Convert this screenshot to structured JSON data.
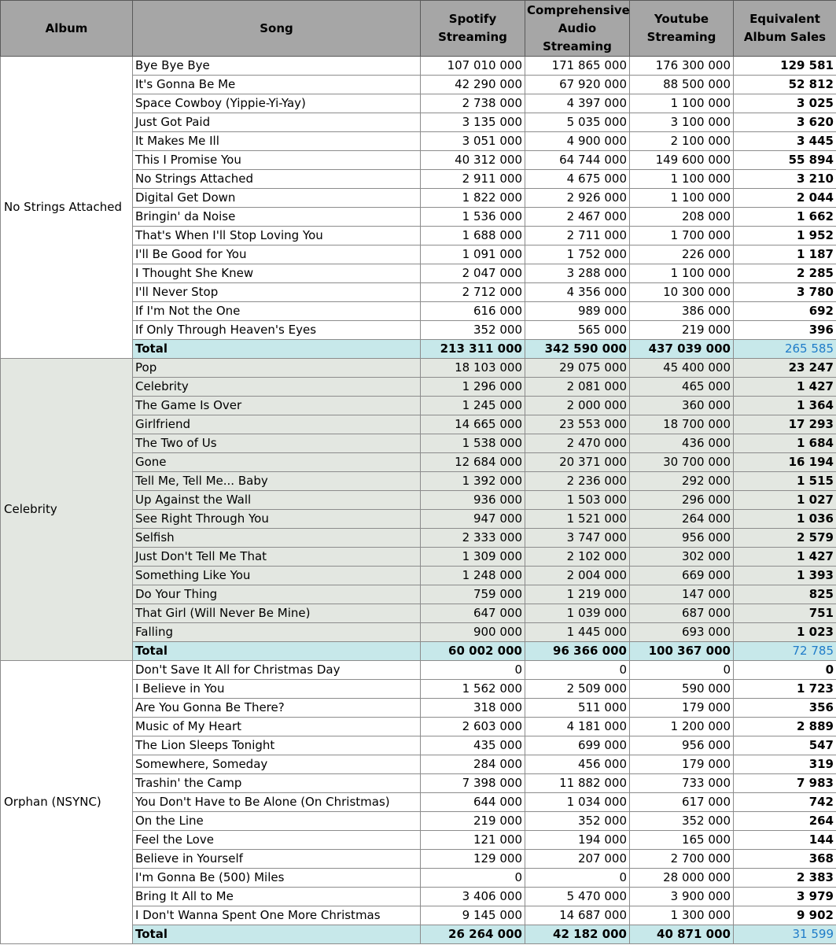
{
  "headers": {
    "album": "Album",
    "song": "Song",
    "spotify": "Spotify Streaming",
    "comprehensive": "Comprehensive Audio Streaming",
    "youtube": "Youtube Streaming",
    "eas": "Equivalent Album Sales"
  },
  "albums": [
    {
      "name": "No Strings Attached",
      "songs": [
        [
          "Bye Bye Bye",
          "107 010 000",
          "171 865 000",
          "176 300 000",
          "129 581"
        ],
        [
          "It's Gonna Be Me",
          "42 290 000",
          "67 920 000",
          "88 500 000",
          "52 812"
        ],
        [
          "Space Cowboy (Yippie-Yi-Yay)",
          "2 738 000",
          "4 397 000",
          "1 100 000",
          "3 025"
        ],
        [
          "Just Got Paid",
          "3 135 000",
          "5 035 000",
          "3 100 000",
          "3 620"
        ],
        [
          "It Makes Me Ill",
          "3 051 000",
          "4 900 000",
          "2 100 000",
          "3 445"
        ],
        [
          "This I Promise You",
          "40 312 000",
          "64 744 000",
          "149 600 000",
          "55 894"
        ],
        [
          "No Strings Attached",
          "2 911 000",
          "4 675 000",
          "1 100 000",
          "3 210"
        ],
        [
          "Digital Get Down",
          "1 822 000",
          "2 926 000",
          "1 100 000",
          "2 044"
        ],
        [
          "Bringin' da Noise",
          "1 536 000",
          "2 467 000",
          "208 000",
          "1 662"
        ],
        [
          "That's When I'll Stop Loving You",
          "1 688 000",
          "2 711 000",
          "1 700 000",
          "1 952"
        ],
        [
          "I'll Be Good for You",
          "1 091 000",
          "1 752 000",
          "226 000",
          "1 187"
        ],
        [
          "I Thought She Knew",
          "2 047 000",
          "3 288 000",
          "1 100 000",
          "2 285"
        ],
        [
          "I'll Never Stop",
          "2 712 000",
          "4 356 000",
          "10 300 000",
          "3 780"
        ],
        [
          "If I'm Not the One",
          "616 000",
          "989 000",
          "386 000",
          "692"
        ],
        [
          "If Only Through Heaven's Eyes",
          "352 000",
          "565 000",
          "219 000",
          "396"
        ]
      ],
      "total": [
        "Total",
        "213 311 000",
        "342 590 000",
        "437 039 000",
        "265 585"
      ]
    },
    {
      "name": "Celebrity",
      "songs": [
        [
          "Pop",
          "18 103 000",
          "29 075 000",
          "45 400 000",
          "23 247"
        ],
        [
          "Celebrity",
          "1 296 000",
          "2 081 000",
          "465 000",
          "1 427"
        ],
        [
          "The Game Is Over",
          "1 245 000",
          "2 000 000",
          "360 000",
          "1 364"
        ],
        [
          "Girlfriend",
          "14 665 000",
          "23 553 000",
          "18 700 000",
          "17 293"
        ],
        [
          "The Two of Us",
          "1 538 000",
          "2 470 000",
          "436 000",
          "1 684"
        ],
        [
          "Gone",
          "12 684 000",
          "20 371 000",
          "30 700 000",
          "16 194"
        ],
        [
          "Tell Me, Tell Me... Baby",
          "1 392 000",
          "2 236 000",
          "292 000",
          "1 515"
        ],
        [
          "Up Against the Wall",
          "936 000",
          "1 503 000",
          "296 000",
          "1 027"
        ],
        [
          "See Right Through You",
          "947 000",
          "1 521 000",
          "264 000",
          "1 036"
        ],
        [
          "Selfish",
          "2 333 000",
          "3 747 000",
          "956 000",
          "2 579"
        ],
        [
          "Just Don't Tell Me That",
          "1 309 000",
          "2 102 000",
          "302 000",
          "1 427"
        ],
        [
          "Something Like You",
          "1 248 000",
          "2 004 000",
          "669 000",
          "1 393"
        ],
        [
          "Do Your Thing",
          "759 000",
          "1 219 000",
          "147 000",
          "825"
        ],
        [
          "That Girl (Will Never Be Mine)",
          "647 000",
          "1 039 000",
          "687 000",
          "751"
        ],
        [
          "Falling",
          "900 000",
          "1 445 000",
          "693 000",
          "1 023"
        ]
      ],
      "total": [
        "Total",
        "60 002 000",
        "96 366 000",
        "100 367 000",
        "72 785"
      ]
    },
    {
      "name": "Orphan (NSYNC)",
      "songs": [
        [
          "Don't Save It All for Christmas Day",
          "0",
          "0",
          "0",
          "0"
        ],
        [
          "I Believe in You",
          "1 562 000",
          "2 509 000",
          "590 000",
          "1 723"
        ],
        [
          "Are You Gonna Be There?",
          "318 000",
          "511 000",
          "179 000",
          "356"
        ],
        [
          "Music of My Heart",
          "2 603 000",
          "4 181 000",
          "1 200 000",
          "2 889"
        ],
        [
          "The Lion Sleeps Tonight",
          "435 000",
          "699 000",
          "956 000",
          "547"
        ],
        [
          "Somewhere, Someday",
          "284 000",
          "456 000",
          "179 000",
          "319"
        ],
        [
          "Trashin' the Camp",
          "7 398 000",
          "11 882 000",
          "733 000",
          "7 983"
        ],
        [
          "You Don't Have to Be Alone (On Christmas)",
          "644 000",
          "1 034 000",
          "617 000",
          "742"
        ],
        [
          "On the Line",
          "219 000",
          "352 000",
          "352 000",
          "264"
        ],
        [
          "Feel the Love",
          "121 000",
          "194 000",
          "165 000",
          "144"
        ],
        [
          "Believe in Yourself",
          "129 000",
          "207 000",
          "2 700 000",
          "368"
        ],
        [
          "I'm Gonna Be (500) Miles",
          "0",
          "0",
          "28 000 000",
          "2 383"
        ],
        [
          "Bring It All to Me",
          "3 406 000",
          "5 470 000",
          "3 900 000",
          "3 979"
        ],
        [
          "I Don't Wanna Spent One More Christmas",
          "9 145 000",
          "14 687 000",
          "1 300 000",
          "9 902"
        ]
      ],
      "total": [
        "Total",
        "26 264 000",
        "42 182 000",
        "40 871 000",
        "31 599"
      ]
    }
  ]
}
